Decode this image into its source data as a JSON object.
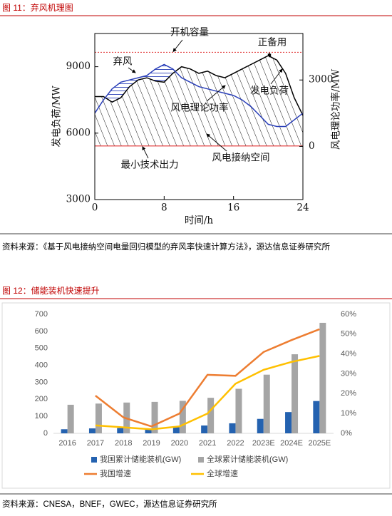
{
  "captions": [
    "图 11：弃风机理图",
    "图 12：储能装机快速提升"
  ],
  "sources": [
    "资料来源：《基于风电接纳空间电量回归模型的弃风率快速计算方法》，源达信息证券研究所",
    "资料来源：CNESA，BNEF，GWEC，源达信息证券研究所"
  ],
  "chart_data": [
    {
      "type": "line",
      "xlabel": "时间/h",
      "ylabel": "发电负荷/MW",
      "y2label": "风电理论功率/MW",
      "x": [
        0,
        1,
        2,
        3,
        4,
        5,
        6,
        7,
        8,
        9,
        10,
        11,
        12,
        13,
        14,
        15,
        16,
        17,
        18,
        19,
        20,
        21,
        22,
        23,
        24
      ],
      "xlim": [
        0,
        24
      ],
      "xticks": [
        0,
        8,
        16,
        24
      ],
      "ylim": [
        3000,
        10500
      ],
      "yticks": [
        3000,
        6000,
        9000
      ],
      "y2lim": [
        -2400,
        5100
      ],
      "y2ticks": [
        0,
        3000
      ],
      "series": [
        {
          "name": "发电负荷",
          "color": "#000000",
          "values": [
            7650,
            7650,
            7400,
            7600,
            8100,
            8400,
            8500,
            8350,
            8300,
            8700,
            9000,
            8900,
            8700,
            8800,
            8600,
            8500,
            8700,
            8900,
            9100,
            9300,
            9500,
            9300,
            8700,
            7600,
            6800
          ]
        },
        {
          "name": "风电理论功率",
          "color": "#2a3fb8",
          "axis": "y2",
          "values": [
            1500,
            2100,
            2600,
            2900,
            3000,
            3100,
            3200,
            3500,
            3700,
            3500,
            3100,
            2900,
            2700,
            2600,
            2500,
            2400,
            2300,
            2100,
            1800,
            1400,
            1000,
            900,
            900,
            1200,
            1500
          ]
        }
      ],
      "capacity": {
        "label": "开机容量",
        "value": 9650,
        "color": "#e03030"
      },
      "min_output": {
        "label": "最小技术出力",
        "value": 5420,
        "color": "#e03030"
      },
      "annotations": [
        "弃风",
        "风电接纳空间",
        "正备用"
      ]
    },
    {
      "type": "bar_line",
      "categories": [
        "2016",
        "2017",
        "2018",
        "2019",
        "2020",
        "2021",
        "2022",
        "2023E",
        "2024E",
        "2025E"
      ],
      "ylim": [
        0,
        700
      ],
      "yticks": [
        0,
        100,
        200,
        300,
        400,
        500,
        600,
        700
      ],
      "y2lim": [
        0,
        60
      ],
      "y2ticks": [
        {
          "value": 0,
          "label": "0%"
        },
        {
          "value": 10,
          "label": "10%"
        },
        {
          "value": 20,
          "label": "20%"
        },
        {
          "value": 30,
          "label": "30%"
        },
        {
          "value": 40,
          "label": "40%"
        },
        {
          "value": 50,
          "label": "50%"
        },
        {
          "value": 60,
          "label": "60%"
        }
      ],
      "legend": "bottom",
      "series": [
        {
          "name": "我国累计储能装机(GW)",
          "kind": "bar",
          "color": "#2462b0",
          "values": [
            24,
            29,
            31,
            24,
            36,
            46,
            59,
            85,
            125,
            190
          ]
        },
        {
          "name": "全球累计储能装机(GW)",
          "kind": "bar",
          "color": "#a5a5a5",
          "values": [
            168,
            175,
            181,
            185,
            191,
            209,
            262,
            345,
            465,
            650
          ]
        },
        {
          "name": "我国增速",
          "kind": "line",
          "axis": "y2",
          "color": "#ed7d31",
          "values": [
            null,
            19,
            8,
            3.5,
            10,
            29.5,
            29,
            41,
            47,
            52.5
          ]
        },
        {
          "name": "全球增速",
          "kind": "line",
          "axis": "y2",
          "color": "#ffc000",
          "values": [
            null,
            4,
            3,
            2,
            3.5,
            10,
            25,
            32,
            36,
            39
          ]
        }
      ]
    }
  ]
}
